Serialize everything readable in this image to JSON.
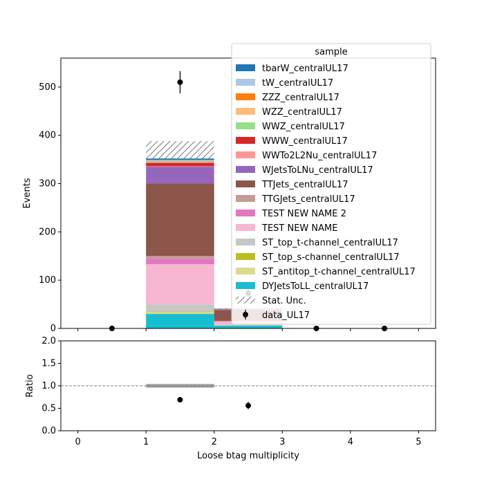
{
  "chart_data": [
    {
      "type": "bar",
      "stacked": true,
      "x_edges": [
        0,
        1,
        2,
        3,
        4,
        5
      ],
      "ylabel": "Events",
      "ylim": [
        0,
        560
      ],
      "yticks": [
        0,
        100,
        200,
        300,
        400,
        500
      ],
      "xlim": [
        -0.25,
        5.25
      ],
      "legend": {
        "title": "sample",
        "placement": "top-right",
        "stat_label": "Stat. Unc.",
        "data_label": "data_UL17"
      },
      "series": [
        {
          "name": "DYJetsToLL_centralUL17",
          "color": "#17becf",
          "values": [
            0,
            30,
            6,
            0,
            0
          ]
        },
        {
          "name": "ST_antitop_t-channel_centralUL17",
          "color": "#dbdb8d",
          "values": [
            0,
            4,
            0.5,
            0,
            0
          ]
        },
        {
          "name": "ST_top_s-channel_centralUL17",
          "color": "#bcbd22",
          "values": [
            0,
            1,
            0.2,
            0,
            0
          ]
        },
        {
          "name": "ST_top_t-channel_centralUL17",
          "color": "#c7c7c7",
          "values": [
            0,
            15,
            1,
            0,
            0
          ]
        },
        {
          "name": "TEST NEW NAME",
          "color": "#f7b6d2",
          "values": [
            0,
            83,
            6,
            0,
            0
          ]
        },
        {
          "name": "TEST NEW NAME 2",
          "color": "#e377c2",
          "values": [
            0,
            12,
            1,
            0,
            0
          ]
        },
        {
          "name": "TTGJets_centralUL17",
          "color": "#c49c94",
          "values": [
            0,
            5,
            1,
            0,
            0
          ]
        },
        {
          "name": "TTJets_centralUL17",
          "color": "#8c564b",
          "values": [
            0,
            150,
            22,
            0,
            0
          ]
        },
        {
          "name": "WJetsToLNu_centralUL17",
          "color": "#9467bd",
          "values": [
            0,
            35,
            2,
            0,
            0
          ]
        },
        {
          "name": "WWTo2L2Nu_centralUL17",
          "color": "#ff9896",
          "values": [
            0,
            1,
            0.2,
            0,
            0
          ]
        },
        {
          "name": "WWW_centralUL17",
          "color": "#d62728",
          "values": [
            0,
            7,
            0.5,
            0,
            0
          ]
        },
        {
          "name": "WWZ_centralUL17",
          "color": "#98df8a",
          "values": [
            0,
            1,
            0.2,
            0,
            0
          ]
        },
        {
          "name": "WZZ_centralUL17",
          "color": "#ffbb78",
          "values": [
            0,
            1,
            0.2,
            0,
            0
          ]
        },
        {
          "name": "ZZZ_centralUL17",
          "color": "#ff7f0e",
          "values": [
            0,
            1,
            0.2,
            0,
            0
          ]
        },
        {
          "name": "tW_centralUL17",
          "color": "#aec7e8",
          "values": [
            0,
            3,
            0.3,
            0,
            0
          ]
        },
        {
          "name": "tbarW_centralUL17",
          "color": "#1f77b4",
          "values": [
            0,
            3,
            0.3,
            0,
            0
          ]
        }
      ],
      "stat_unc": {
        "up": [
          0,
          388,
          42,
          0,
          0
        ],
        "down": [
          0,
          352,
          40,
          0,
          0
        ]
      },
      "data_points": {
        "x": [
          0.5,
          1.5,
          2.5,
          3.5,
          4.5
        ],
        "y": [
          0,
          510,
          73,
          0,
          0
        ],
        "err": [
          0,
          23,
          8.5,
          0,
          0
        ]
      }
    },
    {
      "type": "scatter",
      "xlabel": "Loose btag multiplicity",
      "ylabel": "Ratio",
      "ylim": [
        0,
        2.0
      ],
      "yticks": [
        0.0,
        0.5,
        1.0,
        1.5,
        2.0
      ],
      "xlim": [
        -0.25,
        5.25
      ],
      "xticks": [
        0,
        1,
        2,
        3,
        4,
        5
      ],
      "reference_line": 1.0,
      "x": [
        1.5,
        2.5
      ],
      "y": [
        0.69,
        0.56
      ],
      "err": [
        0.04,
        0.08
      ],
      "unc_band": {
        "x_range": [
          1,
          2
        ],
        "low": 0.96,
        "high": 1.04
      }
    }
  ]
}
